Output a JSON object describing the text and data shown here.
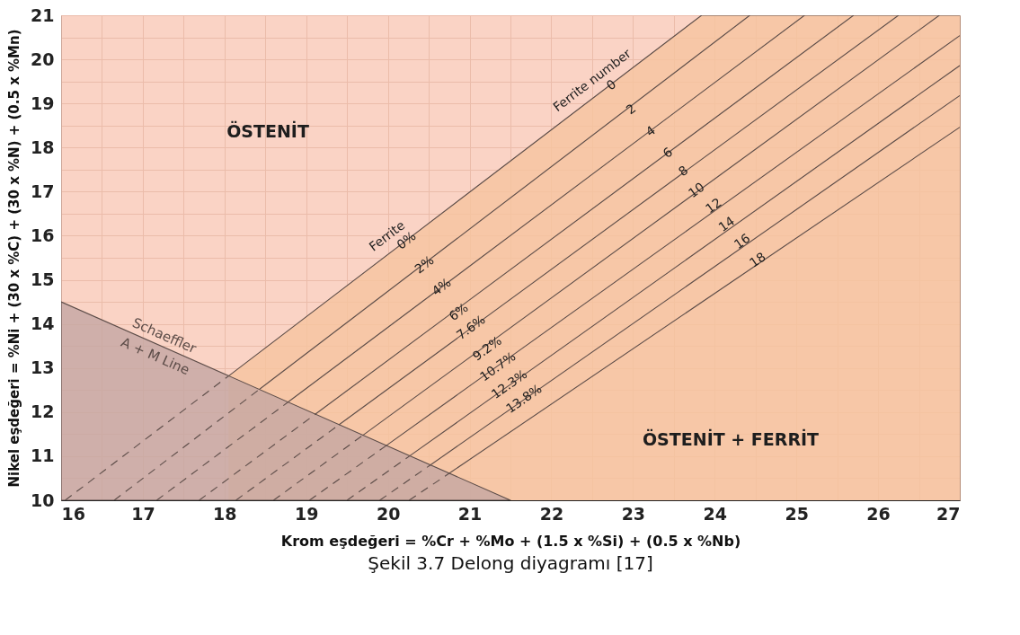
{
  "chart_data": {
    "type": "line",
    "xlabel": "Krom eşdeğeri  = %Cr + %Mo + (1.5 x %Si) + (0.5 x %Nb)",
    "ylabel": "Nikel eşdeğeri = %Ni + (30 x %C) + (30 x %N) + (0.5 x %Mn)",
    "xlim": [
      16,
      27
    ],
    "ylim": [
      10,
      21
    ],
    "xticks": [
      16,
      {
        "value": 16.5,
        "label": null
      },
      17,
      {
        "value": 17.5,
        "label": null
      },
      18,
      {
        "value": 18.5,
        "label": null
      },
      19,
      {
        "value": 19.5,
        "label": null
      },
      20,
      {
        "value": 20.5,
        "label": null
      },
      21,
      {
        "value": 21.5,
        "label": null
      },
      22,
      {
        "value": 22.5,
        "label": null
      },
      23,
      {
        "value": 23.5,
        "label": null
      },
      24,
      {
        "value": 24.5,
        "label": null
      },
      25,
      {
        "value": 25.5,
        "label": null
      },
      26,
      {
        "value": 26.5,
        "label": null
      },
      27
    ],
    "yticks": [
      10,
      {
        "value": 10.5,
        "label": null
      },
      11,
      {
        "value": 11.5,
        "label": null
      },
      12,
      {
        "value": 12.5,
        "label": null
      },
      13,
      {
        "value": 13.5,
        "label": null
      },
      14,
      {
        "value": 14.5,
        "label": null
      },
      15,
      {
        "value": 15.5,
        "label": null
      },
      16,
      {
        "value": 16.5,
        "label": null
      },
      17,
      {
        "value": 17.5,
        "label": null
      },
      18,
      {
        "value": 18.5,
        "label": null
      },
      19,
      {
        "value": 19.5,
        "label": null
      },
      20,
      {
        "value": 20.5,
        "label": null
      },
      21
    ],
    "grid": true,
    "bands": [
      {
        "axis": "y",
        "from": 10,
        "to": 21,
        "color": "#f9c8b6",
        "label": "ÖSTENİT"
      }
    ],
    "series": [
      {
        "type": "area",
        "name": "ÖSTENİT + FERRİT",
        "color": "#f6c49f",
        "x": [
          18.05,
          23.84,
          27
        ],
        "values": [
          12.82,
          21,
          21
        ]
      },
      {
        "type": "area",
        "name": "Schaeffler A + M Line",
        "color": "#c4a6a2",
        "x": [
          16,
          21.5
        ],
        "values": [
          14.5,
          10
        ]
      },
      {
        "color": "#5c4c48",
        "x": [
          18.43,
          24.43
        ],
        "values": [
          12.52,
          21
        ]
      },
      {
        "color": "#5c4c48",
        "x": [
          18.78,
          25.1
        ],
        "values": [
          12.23,
          21
        ]
      },
      {
        "color": "#5c4c48",
        "x": [
          19.11,
          25.7
        ],
        "values": [
          11.95,
          21
        ]
      },
      {
        "color": "#5c4c48",
        "x": [
          19.4,
          26.25
        ],
        "values": [
          11.71,
          21
        ]
      },
      {
        "color": "#5c4c48",
        "x": [
          19.69,
          26.75
        ],
        "values": [
          11.47,
          21
        ]
      },
      {
        "color": "#5c4c48",
        "x": [
          19.98,
          27
        ],
        "values": [
          11.24,
          20.54
        ]
      },
      {
        "color": "#5c4c48",
        "x": [
          20.27,
          27
        ],
        "values": [
          11.01,
          19.86
        ]
      },
      {
        "color": "#5c4c48",
        "x": [
          20.52,
          27
        ],
        "values": [
          10.8,
          19.18
        ]
      },
      {
        "color": "#5c4c48",
        "x": [
          20.75,
          27
        ],
        "values": [
          10.61,
          18.46
        ]
      },
      {
        "line_style": "dashed",
        "color": "#5c4c48",
        "x": [
          16.05,
          18.05,
          null,
          16.65,
          18.43,
          null,
          17.17,
          18.78,
          null,
          17.69,
          19.11,
          null,
          18.14,
          19.4,
          null,
          18.6,
          19.69,
          null,
          19.04,
          19.98,
          null,
          19.5,
          20.27,
          null,
          19.9,
          20.52,
          null,
          20.26,
          20.75
        ],
        "values": [
          10,
          12.82,
          null,
          10,
          12.52,
          null,
          10,
          12.23,
          null,
          10,
          11.95,
          null,
          10,
          11.71,
          null,
          10,
          11.47,
          null,
          10,
          11.24,
          null,
          10,
          11.01,
          null,
          10,
          10.8,
          null,
          10,
          10.61
        ]
      }
    ],
    "annotations": [
      "Ferrite number",
      {
        "text": "0",
        "x": 22.74,
        "y": 19.41
      },
      {
        "text": "2",
        "x": 22.98,
        "y": 18.86
      },
      {
        "text": "4",
        "x": 23.22,
        "y": 18.36
      },
      {
        "text": "6",
        "x": 23.43,
        "y": 17.87
      },
      {
        "text": "8",
        "x": 23.62,
        "y": 17.46
      },
      {
        "text": "10",
        "x": 23.78,
        "y": 17.02
      },
      {
        "text": "12",
        "x": 23.99,
        "y": 16.67
      },
      {
        "text": "14",
        "x": 24.15,
        "y": 16.25
      },
      {
        "text": "16",
        "x": 24.34,
        "y": 15.86
      },
      {
        "text": "18",
        "x": 24.53,
        "y": 15.44
      },
      "Ferrite",
      {
        "text": "0%",
        "x": 20.23,
        "y": 15.88
      },
      {
        "text": "2%",
        "x": 20.45,
        "y": 15.33
      },
      {
        "text": "4%",
        "x": 20.66,
        "y": 14.83
      },
      {
        "text": "6%",
        "x": 20.87,
        "y": 14.26
      },
      {
        "text": "7.6%",
        "x": 21.02,
        "y": 13.91
      },
      {
        "text": "9.2%",
        "x": 21.22,
        "y": 13.43
      },
      {
        "text": "10.7%",
        "x": 21.35,
        "y": 13.02
      },
      {
        "text": "12.3%",
        "x": 21.49,
        "y": 12.62
      },
      {
        "text": "13.8%",
        "x": 21.67,
        "y": 12.29
      },
      "Şekil 3.7 Delong diyagramı [17]"
    ]
  }
}
